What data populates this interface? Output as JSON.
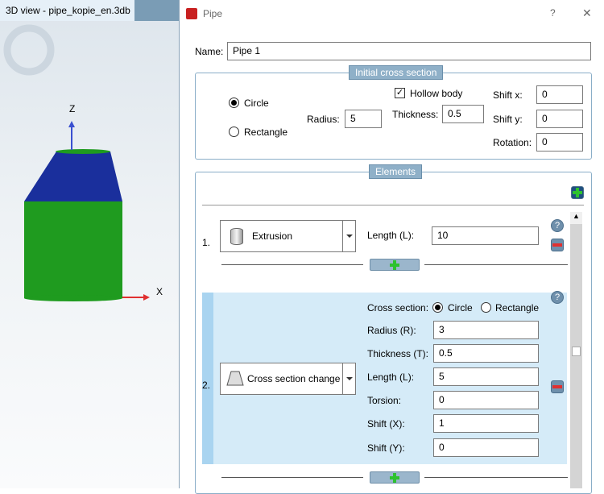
{
  "left_panel": {
    "tab_title": "3D view - pipe_kopie_en.3db",
    "axis_z": "Z",
    "axis_x": "X"
  },
  "dialog": {
    "title": "Pipe",
    "help": "?",
    "close": "✕",
    "name_label": "Name:",
    "name_value": "Pipe 1",
    "initial": {
      "legend": "Initial cross section",
      "circle": "Circle",
      "rectangle": "Rectangle",
      "selected": "Circle",
      "radius_label": "Radius:",
      "radius": "5",
      "hollow_label": "Hollow body",
      "hollow_checked": true,
      "thickness_label": "Thickness:",
      "thickness": "0.5",
      "shiftx_label": "Shift x:",
      "shiftx": "0",
      "shifty_label": "Shift y:",
      "shifty": "0",
      "rotation_label": "Rotation:",
      "rotation": "0"
    },
    "elements": {
      "legend": "Elements",
      "items": [
        {
          "num": "1.",
          "type": "Extrusion",
          "length_label": "Length (L):",
          "length": "10"
        },
        {
          "num": "2.",
          "type": "Cross section change",
          "cs_label": "Cross section:",
          "circle": "Circle",
          "rectangle": "Rectangle",
          "selected": "Circle",
          "radius_label": "Radius (R):",
          "radius": "3",
          "thickness_label": "Thickness (T):",
          "thickness": "0.5",
          "length_label": "Length (L):",
          "length": "5",
          "torsion_label": "Torsion:",
          "torsion": "0",
          "shiftx_label": "Shift (X):",
          "shiftx": "1",
          "shifty_label": "Shift (Y):",
          "shifty": "0"
        }
      ]
    }
  },
  "colors": {
    "accent": "#8fb0c8",
    "selected_row": "#d5ebf8",
    "cylinder": "#1f9b1f",
    "cone": "#1a2f9c"
  }
}
